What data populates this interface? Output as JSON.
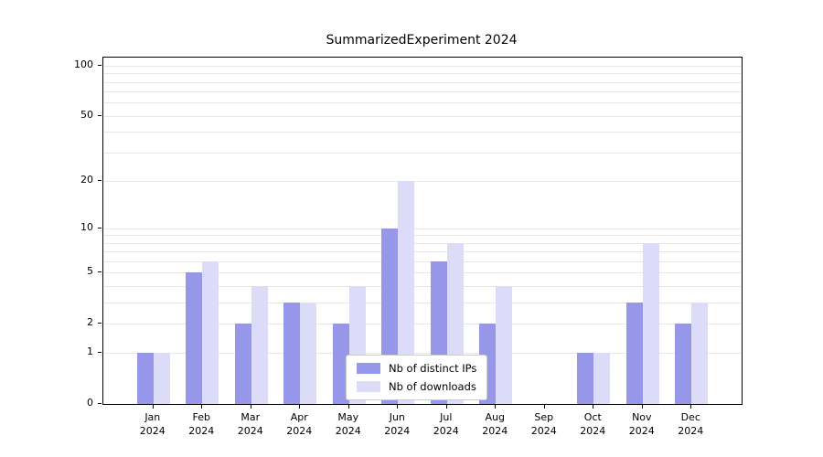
{
  "chart_data": {
    "type": "bar",
    "title": "SummarizedExperiment 2024",
    "x_year": "2024",
    "categories": [
      "Jan",
      "Feb",
      "Mar",
      "Apr",
      "May",
      "Jun",
      "Jul",
      "Aug",
      "Sep",
      "Oct",
      "Nov",
      "Dec"
    ],
    "series": [
      {
        "name": "Nb of distinct IPs",
        "color": "#9797ea",
        "values": [
          1,
          5,
          2,
          3,
          2,
          10,
          6,
          2,
          0,
          1,
          3,
          2
        ]
      },
      {
        "name": "Nb of downloads",
        "color": "#dcdcf8",
        "values": [
          1,
          6,
          4,
          3,
          4,
          20,
          8,
          4,
          0,
          1,
          8,
          3
        ]
      }
    ],
    "yticks": [
      0,
      1,
      2,
      5,
      10,
      20,
      50,
      100
    ],
    "scale": "log1p",
    "ylim": [
      0,
      112
    ],
    "grid": "horizontal-minor",
    "grid_color": "#e7e7e7",
    "legend_position": "lower-center",
    "xlabel": "",
    "ylabel": ""
  }
}
